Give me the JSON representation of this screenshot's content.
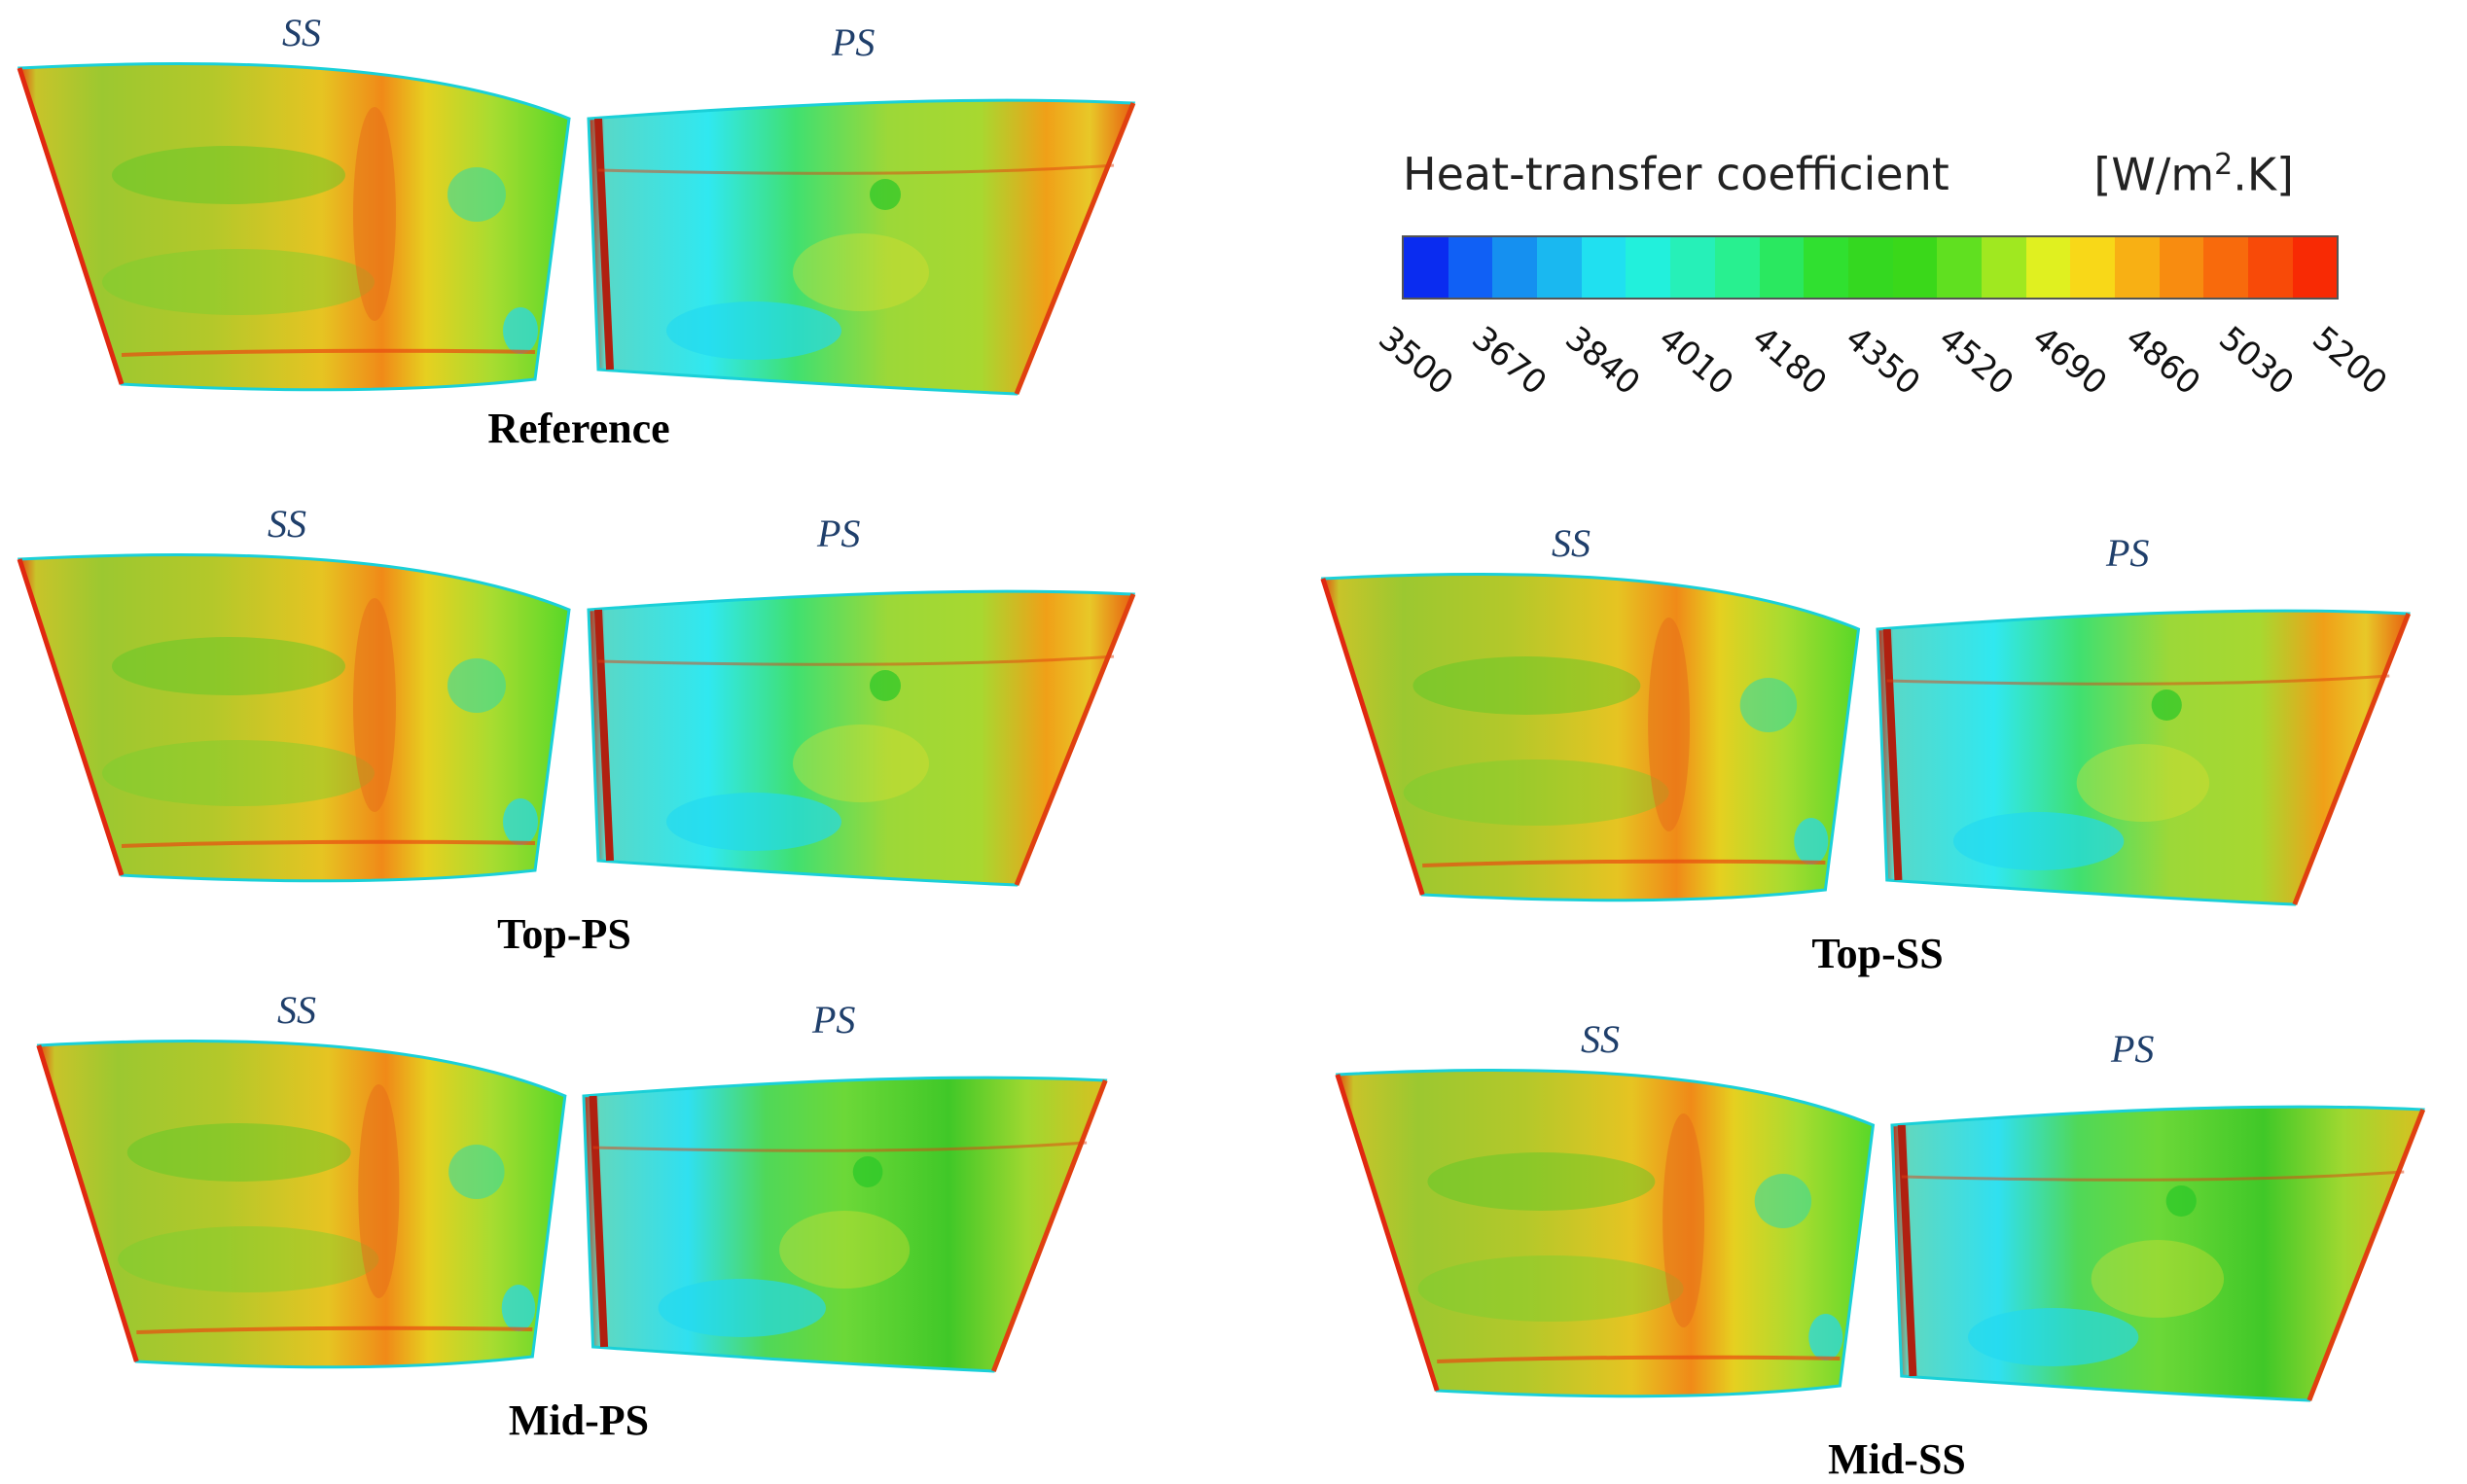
{
  "legend": {
    "title": "Heat-transfer coefficient",
    "unit": "[W/m2.K]",
    "unit_parts": {
      "base": "[W/m",
      "exp": "2",
      "tail": ".K]"
    },
    "min": 3500,
    "max": 5200,
    "ticks": [
      "3500",
      "3670",
      "3840",
      "4010",
      "4180",
      "4350",
      "4520",
      "4690",
      "4860",
      "5030",
      "5200"
    ],
    "colors": [
      "#0a2cf0",
      "#1060f5",
      "#1590f0",
      "#1ab8f0",
      "#20e0f0",
      "#22f0dc",
      "#26f0b8",
      "#28f090",
      "#2ae860",
      "#30e030",
      "#34d820",
      "#3ad81a",
      "#60e020",
      "#a0e820",
      "#e0f020",
      "#f8d818",
      "#f8b014",
      "#f88c10",
      "#f86a0c",
      "#f84a08",
      "#f82a04"
    ]
  },
  "panels": [
    {
      "title": "Reference",
      "ss_label": "SS",
      "ps_label": "PS"
    },
    {
      "title": "Top-PS",
      "ss_label": "SS",
      "ps_label": "PS"
    },
    {
      "title": "Top-SS",
      "ss_label": "SS",
      "ps_label": "PS"
    },
    {
      "title": "Mid-PS",
      "ss_label": "SS",
      "ps_label": "PS"
    },
    {
      "title": "Mid-SS",
      "ss_label": "SS",
      "ps_label": "PS"
    }
  ]
}
